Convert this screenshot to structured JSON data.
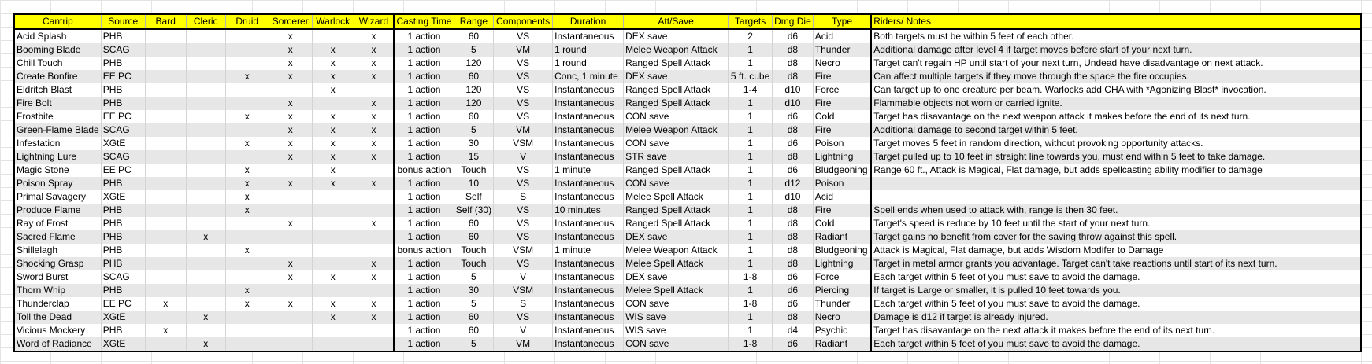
{
  "columns": [
    "Cantrip",
    "Source",
    "Bard",
    "Cleric",
    "Druid",
    "Sorcerer",
    "Warlock",
    "Wizard",
    "Casting Time",
    "Range",
    "Components",
    "Duration",
    "Att/Save",
    "Targets",
    "Dmg Die",
    "Type",
    "Riders/ Notes"
  ],
  "rows": [
    [
      "Acid Splash",
      "PHB",
      "",
      "",
      "",
      "x",
      "",
      "x",
      "1 action",
      "60",
      "VS",
      "Instantaneous",
      "DEX save",
      "2",
      "d6",
      "Acid",
      "Both targets must be within 5 feet of each other."
    ],
    [
      "Booming Blade",
      "SCAG",
      "",
      "",
      "",
      "x",
      "x",
      "x",
      "1 action",
      "5",
      "VM",
      "1 round",
      "Melee Weapon Attack",
      "1",
      "d8",
      "Thunder",
      "Additional damage after level 4 if target moves before start of your next turn."
    ],
    [
      "Chill Touch",
      "PHB",
      "",
      "",
      "",
      "x",
      "x",
      "x",
      "1 action",
      "120",
      "VS",
      "1 round",
      "Ranged Spell Attack",
      "1",
      "d8",
      "Necro",
      "Target can't regain HP until start of your next turn, Undead have disadvantage on next attack."
    ],
    [
      "Create Bonfire",
      "EE PC",
      "",
      "",
      "x",
      "x",
      "x",
      "x",
      "1 action",
      "60",
      "VS",
      "Conc, 1 minute",
      "DEX save",
      "5 ft. cube",
      "d8",
      "Fire",
      "Can affect multiple targets if they move through the space the fire occupies."
    ],
    [
      "Eldritch Blast",
      "PHB",
      "",
      "",
      "",
      "",
      "x",
      "",
      "1 action",
      "120",
      "VS",
      "Instantaneous",
      "Ranged Spell Attack",
      "1-4",
      "d10",
      "Force",
      "Can target up to one creature per beam. Warlocks add CHA with *Agonizing Blast* invocation."
    ],
    [
      "Fire Bolt",
      "PHB",
      "",
      "",
      "",
      "x",
      "",
      "x",
      "1 action",
      "120",
      "VS",
      "Instantaneous",
      "Ranged Spell Attack",
      "1",
      "d10",
      "Fire",
      "Flammable objects not worn or carried ignite."
    ],
    [
      "Frostbite",
      "EE PC",
      "",
      "",
      "x",
      "x",
      "x",
      "x",
      "1 action",
      "60",
      "VS",
      "Instantaneous",
      "CON save",
      "1",
      "d6",
      "Cold",
      "Target has disavantage on the next weapon attack it makes before the end of its next turn."
    ],
    [
      "Green-Flame Blade",
      "SCAG",
      "",
      "",
      "",
      "x",
      "x",
      "x",
      "1 action",
      "5",
      "VM",
      "Instantaneous",
      "Melee Weapon Attack",
      "1",
      "d8",
      "Fire",
      "Additional damage to second target within 5 feet."
    ],
    [
      "Infestation",
      "XGtE",
      "",
      "",
      "x",
      "x",
      "x",
      "x",
      "1 action",
      "30",
      "VSM",
      "Instantaneous",
      "CON save",
      "1",
      "d6",
      "Poison",
      "Target moves 5 feet in random direction, without provoking opportunity attacks."
    ],
    [
      "Lightning Lure",
      "SCAG",
      "",
      "",
      "",
      "x",
      "x",
      "x",
      "1 action",
      "15",
      "V",
      "Instantaneous",
      "STR save",
      "1",
      "d8",
      "Lightning",
      "Target pulled up to 10 feet in straight line towards you, must end within 5 feet to take damage."
    ],
    [
      "Magic Stone",
      "EE PC",
      "",
      "",
      "x",
      "",
      "x",
      "",
      "bonus action",
      "Touch",
      "VS",
      "1 minute",
      "Ranged Spell Attack",
      "1",
      "d6",
      "Bludgeoning",
      "Range 60 ft., Attack is Magical, Flat damage, but adds spellcasting ability modifier to damage"
    ],
    [
      "Poison Spray",
      "PHB",
      "",
      "",
      "x",
      "x",
      "x",
      "x",
      "1 action",
      "10",
      "VS",
      "Instantaneous",
      "CON save",
      "1",
      "d12",
      "Poison",
      ""
    ],
    [
      "Primal Savagery",
      "XGtE",
      "",
      "",
      "x",
      "",
      "",
      "",
      "1 action",
      "Self",
      "S",
      "Instantaneous",
      "Melee Spell Attack",
      "1",
      "d10",
      "Acid",
      ""
    ],
    [
      "Produce Flame",
      "PHB",
      "",
      "",
      "x",
      "",
      "",
      "",
      "1 action",
      "Self (30)",
      "VS",
      "10 minutes",
      "Ranged Spell Attack",
      "1",
      "d8",
      "Fire",
      "Spell ends when used to attack with, range is then 30 feet."
    ],
    [
      "Ray of Frost",
      "PHB",
      "",
      "",
      "",
      "x",
      "",
      "x",
      "1 action",
      "60",
      "VS",
      "Instantaneous",
      "Ranged Spell Attack",
      "1",
      "d8",
      "Cold",
      "Target's speed is reduce by 10 feet until the start of your next turn."
    ],
    [
      "Sacred Flame",
      "PHB",
      "",
      "x",
      "",
      "",
      "",
      "",
      "1 action",
      "60",
      "VS",
      "Instantaneous",
      "DEX save",
      "1",
      "d8",
      "Radiant",
      "Target gains no benefit from cover for the saving throw against this spell."
    ],
    [
      "Shillelagh",
      "PHB",
      "",
      "",
      "x",
      "",
      "",
      "",
      "bonus action",
      "Touch",
      "VSM",
      "1 minute",
      "Melee Weapon Attack",
      "1",
      "d8",
      "Bludgeoning",
      "Attack is Magical, Flat damage, but adds Wisdom Modifer to Damage"
    ],
    [
      "Shocking Grasp",
      "PHB",
      "",
      "",
      "",
      "x",
      "",
      "x",
      "1 action",
      "Touch",
      "VS",
      "Instantaneous",
      "Melee Spell Attack",
      "1",
      "d8",
      "Lightning",
      "Target in metal armor grants you advantage. Target can't take reactions until start of its next turn."
    ],
    [
      "Sword Burst",
      "SCAG",
      "",
      "",
      "",
      "x",
      "x",
      "x",
      "1 action",
      "5",
      "V",
      "Instantaneous",
      "DEX save",
      "1-8",
      "d6",
      "Force",
      "Each target within 5 feet of you must save to avoid the damage."
    ],
    [
      "Thorn Whip",
      "PHB",
      "",
      "",
      "x",
      "",
      "",
      "",
      "1 action",
      "30",
      "VSM",
      "Instantaneous",
      "Melee Spell Attack",
      "1",
      "d6",
      "Piercing",
      "If target is Large or smaller, it is pulled 10 feet towards you."
    ],
    [
      "Thunderclap",
      "EE PC",
      "x",
      "",
      "x",
      "x",
      "x",
      "x",
      "1 action",
      "5",
      "S",
      "Instantaneous",
      "CON save",
      "1-8",
      "d6",
      "Thunder",
      "Each target within 5 feet of you must save to avoid the damage."
    ],
    [
      "Toll the Dead",
      "XGtE",
      "",
      "x",
      "",
      "",
      "x",
      "x",
      "1 action",
      "60",
      "VS",
      "Instantaneous",
      "WIS save",
      "1",
      "d8",
      "Necro",
      "Damage is d12 if target is already injured."
    ],
    [
      "Vicious Mockery",
      "PHB",
      "x",
      "",
      "",
      "",
      "",
      "",
      "1 action",
      "60",
      "V",
      "Instantaneous",
      "WIS save",
      "1",
      "d4",
      "Psychic",
      "Target has disavantage on the next attack it makes before the end of its next turn."
    ],
    [
      "Word of Radiance",
      "XGtE",
      "",
      "x",
      "",
      "",
      "",
      "",
      "1 action",
      "5",
      "VM",
      "Instantaneous",
      "CON save",
      "1-8",
      "d6",
      "Radiant",
      "Each target within 5 feet of you must save to avoid the damage."
    ]
  ],
  "colors": {
    "header_bg": "#ffff00",
    "stripe_bg": "#e7e7e7"
  }
}
